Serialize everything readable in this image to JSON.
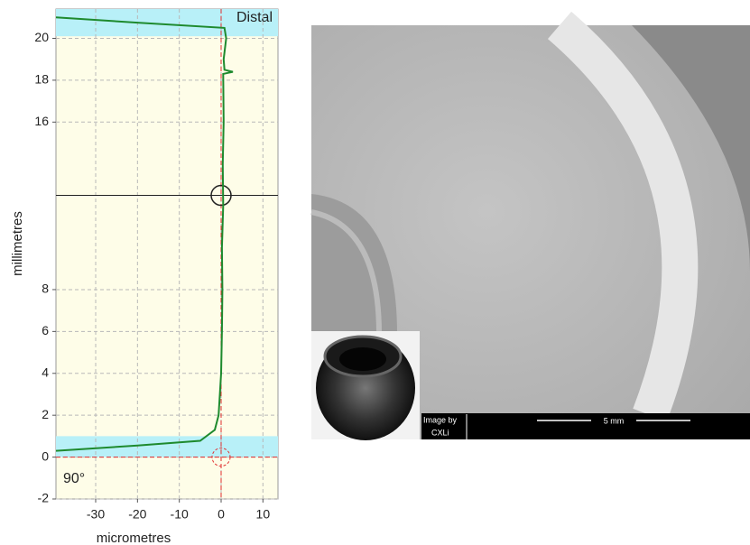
{
  "chart_data": {
    "type": "line",
    "xlabel": "micrometres",
    "ylabel": "millimetres",
    "xlim": [
      -39.5,
      13.6
    ],
    "ylim": [
      -2,
      21.4
    ],
    "xticks": [
      -30,
      -20,
      -10,
      0,
      10
    ],
    "yticks": [
      -2,
      0,
      2,
      4,
      6,
      8,
      16,
      18,
      20
    ],
    "grid": true,
    "bands": [
      {
        "label": "Distal",
        "ylim": [
          20.1,
          21.4
        ],
        "color": "#b8f0f8"
      },
      {
        "label": "90°",
        "ylim": [
          0,
          1.0
        ],
        "color": "#b8f0f8"
      }
    ],
    "cursor": {
      "x": 0,
      "y": 12.5
    },
    "series": [
      {
        "color": "#1e8a2e",
        "x": [
          -39.5,
          -20,
          -5,
          -1.5,
          -0.6,
          -0.3,
          0,
          0.2,
          0.3,
          0.2,
          0.5,
          0.4,
          0.6,
          0.5,
          2.8,
          0.8,
          0.6,
          1.2,
          0.8,
          -20,
          -39.5
        ],
        "y": [
          0.3,
          0.55,
          0.78,
          1.3,
          2.0,
          3.0,
          4.0,
          6.0,
          8.0,
          10.0,
          12.0,
          14.0,
          16.0,
          18.3,
          18.4,
          18.5,
          19.0,
          20.0,
          20.5,
          20.75,
          21.0
        ]
      }
    ]
  },
  "image": {
    "credit_line1": "Image by",
    "credit_line2": "CXLi",
    "scale_bar": "5 mm"
  }
}
